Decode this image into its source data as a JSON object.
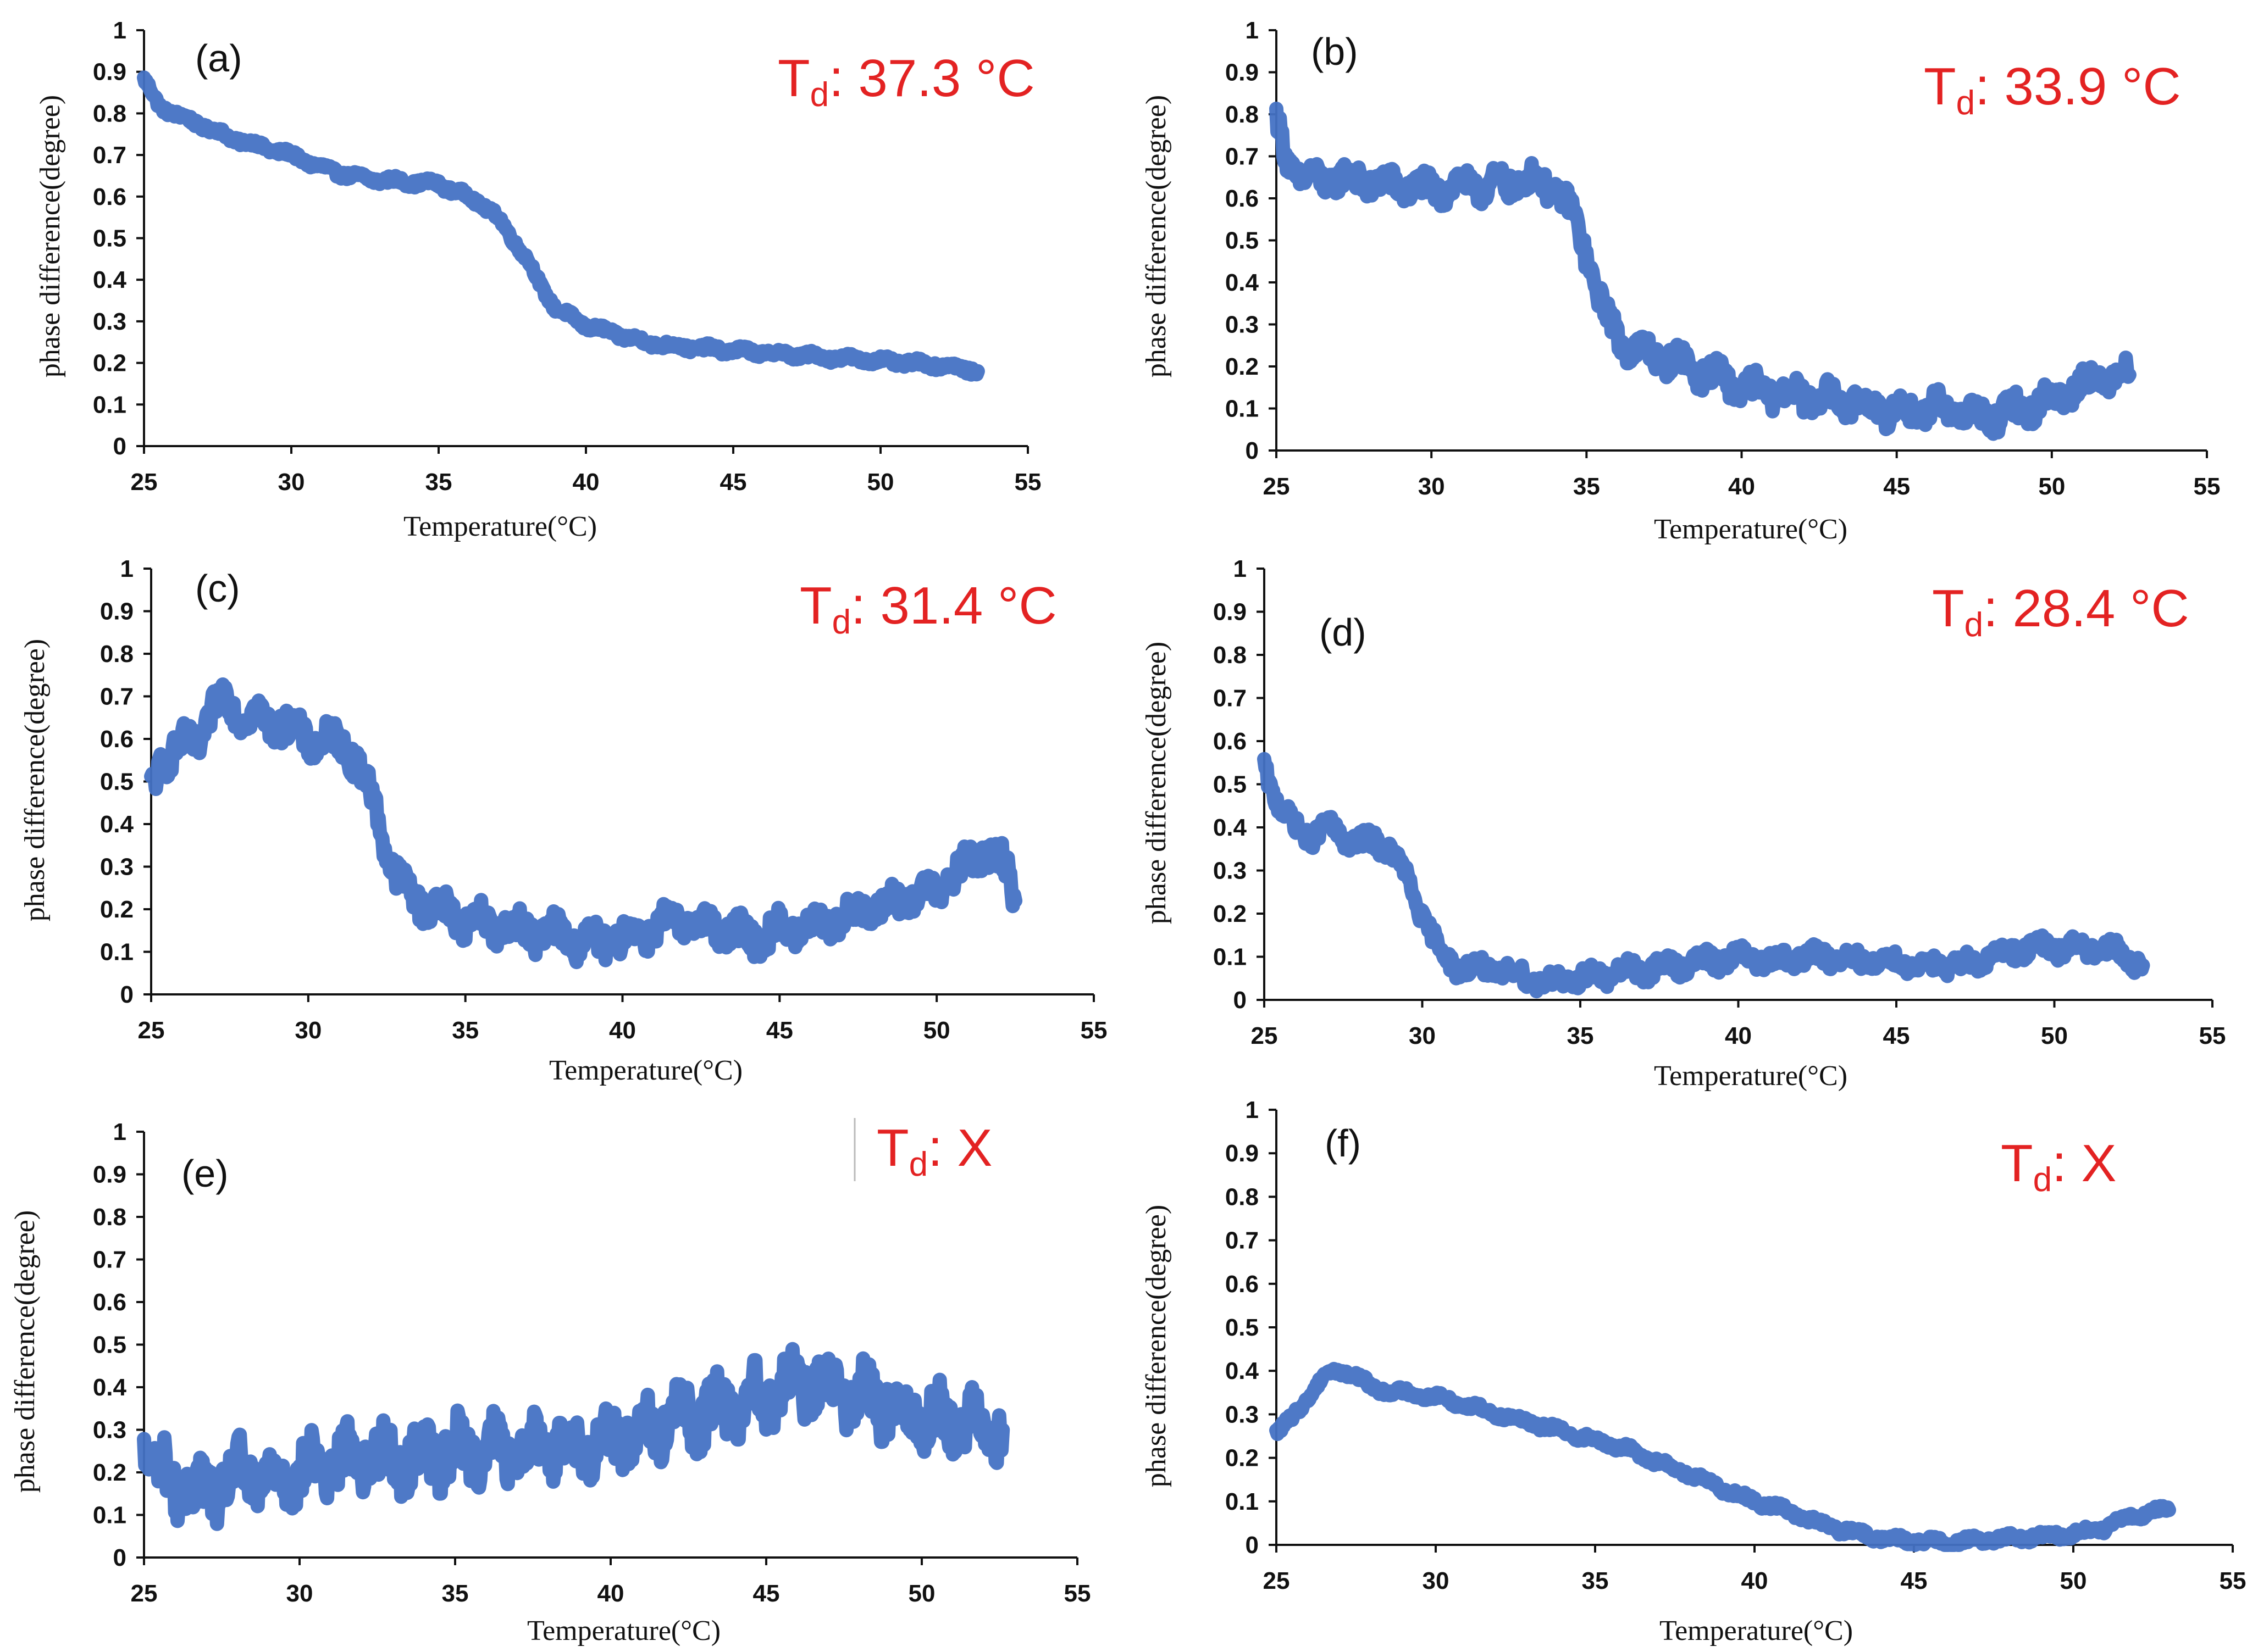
{
  "figure": {
    "series_color": "#4472c4",
    "annotation_color": "#e32222"
  },
  "chart_data": [
    {
      "type": "scatter",
      "panel_label": "(a)",
      "td_label": "T",
      "td_subscript": "d",
      "td_value": ": 37.3 °C",
      "xlabel": "Temperature(°C)",
      "ylabel": "phase difference(degree)",
      "xlim": [
        25,
        55
      ],
      "ylim": [
        0,
        1
      ],
      "xticks": [
        "25",
        "30",
        "35",
        "40",
        "45",
        "50",
        "55"
      ],
      "yticks": [
        "0",
        "0.1",
        "0.2",
        "0.3",
        "0.4",
        "0.5",
        "0.6",
        "0.7",
        "0.8",
        "0.9",
        "1"
      ],
      "noise": 0.008,
      "x": [
        25,
        25.5,
        26,
        27,
        28,
        29,
        30,
        31,
        32,
        33,
        34,
        35,
        36,
        36.5,
        37,
        37.5,
        38,
        38.5,
        39,
        39.5,
        40,
        41,
        42,
        43,
        44,
        45,
        46,
        47,
        48,
        49,
        50,
        51,
        52,
        53,
        53.3
      ],
      "y": [
        0.88,
        0.82,
        0.8,
        0.77,
        0.74,
        0.72,
        0.7,
        0.67,
        0.65,
        0.64,
        0.635,
        0.63,
        0.6,
        0.58,
        0.55,
        0.5,
        0.45,
        0.38,
        0.33,
        0.31,
        0.29,
        0.27,
        0.25,
        0.24,
        0.235,
        0.23,
        0.225,
        0.22,
        0.215,
        0.21,
        0.205,
        0.2,
        0.195,
        0.185,
        0.18
      ]
    },
    {
      "type": "scatter",
      "panel_label": "(b)",
      "td_label": "T",
      "td_subscript": "d",
      "td_value": ": 33.9 °C",
      "xlabel": "Temperature(°C)",
      "ylabel": "phase difference(degree)",
      "xlim": [
        25,
        55
      ],
      "ylim": [
        0,
        1
      ],
      "xticks": [
        "25",
        "30",
        "35",
        "40",
        "45",
        "50",
        "55"
      ],
      "yticks": [
        "0",
        "0.1",
        "0.2",
        "0.3",
        "0.4",
        "0.5",
        "0.6",
        "0.7",
        "0.8",
        "0.9",
        "1"
      ],
      "noise": 0.03,
      "x": [
        25,
        25.3,
        25.8,
        26.5,
        27,
        28,
        29,
        30,
        31,
        32,
        33,
        33.5,
        34,
        34.5,
        35,
        35.5,
        36,
        36.5,
        37,
        38,
        39,
        40,
        41,
        42,
        43,
        44,
        45,
        46,
        47,
        47.5,
        48,
        49,
        50,
        51,
        52,
        52.5
      ],
      "y": [
        0.78,
        0.7,
        0.65,
        0.64,
        0.65,
        0.64,
        0.63,
        0.62,
        0.63,
        0.63,
        0.64,
        0.64,
        0.62,
        0.57,
        0.47,
        0.34,
        0.27,
        0.24,
        0.23,
        0.21,
        0.18,
        0.15,
        0.14,
        0.13,
        0.12,
        0.11,
        0.09,
        0.1,
        0.1,
        0.08,
        0.08,
        0.1,
        0.12,
        0.16,
        0.18,
        0.18
      ]
    },
    {
      "type": "scatter",
      "panel_label": "(c)",
      "td_label": "T",
      "td_subscript": "d",
      "td_value": ": 31.4 °C",
      "xlabel": "Temperature(°C)",
      "ylabel": "phase difference(degree)",
      "xlim": [
        25,
        55
      ],
      "ylim": [
        0,
        1
      ],
      "xticks": [
        "25",
        "30",
        "35",
        "40",
        "45",
        "50",
        "55"
      ],
      "yticks": [
        "0",
        "0.1",
        "0.2",
        "0.3",
        "0.4",
        "0.5",
        "0.6",
        "0.7",
        "0.8",
        "0.9",
        "1"
      ],
      "noise": 0.035,
      "x": [
        25,
        25.3,
        26,
        26.5,
        27,
        27.4,
        28,
        29,
        30,
        31,
        31.4,
        31.8,
        32.2,
        32.6,
        33,
        33.5,
        34,
        35,
        36,
        37,
        38,
        39,
        40,
        41,
        42,
        43,
        44,
        45,
        46,
        47,
        48,
        49,
        50,
        51,
        51.5,
        52,
        52.3,
        52.5
      ],
      "y": [
        0.48,
        0.55,
        0.58,
        0.6,
        0.67,
        0.7,
        0.65,
        0.64,
        0.6,
        0.59,
        0.57,
        0.5,
        0.42,
        0.32,
        0.25,
        0.22,
        0.2,
        0.18,
        0.16,
        0.15,
        0.14,
        0.12,
        0.13,
        0.16,
        0.17,
        0.16,
        0.13,
        0.15,
        0.16,
        0.18,
        0.2,
        0.22,
        0.25,
        0.3,
        0.34,
        0.31,
        0.28,
        0.22
      ]
    },
    {
      "type": "scatter",
      "panel_label": "(d)",
      "td_label": "T",
      "td_subscript": "d",
      "td_value": ": 28.4 °C",
      "xlabel": "Temperature(°C)",
      "ylabel": "phase difference(degree)",
      "xlim": [
        25,
        55
      ],
      "ylim": [
        0,
        1
      ],
      "xticks": [
        "25",
        "30",
        "35",
        "40",
        "45",
        "50",
        "55"
      ],
      "yticks": [
        "0",
        "0.1",
        "0.2",
        "0.3",
        "0.4",
        "0.5",
        "0.6",
        "0.7",
        "0.8",
        "0.9",
        "1"
      ],
      "noise": 0.02,
      "x": [
        25,
        25.2,
        25.6,
        26,
        26.5,
        27,
        27.5,
        28,
        28.5,
        29,
        29.5,
        30,
        30.5,
        31,
        32,
        33,
        34,
        35,
        36,
        37,
        38,
        39,
        40,
        41,
        42,
        43,
        44,
        45,
        46,
        47,
        48,
        49,
        50,
        51,
        52,
        52.8
      ],
      "y": [
        0.55,
        0.5,
        0.43,
        0.4,
        0.38,
        0.4,
        0.38,
        0.36,
        0.37,
        0.35,
        0.28,
        0.2,
        0.12,
        0.08,
        0.07,
        0.06,
        0.04,
        0.05,
        0.06,
        0.07,
        0.08,
        0.09,
        0.1,
        0.09,
        0.1,
        0.1,
        0.09,
        0.09,
        0.08,
        0.08,
        0.1,
        0.12,
        0.12,
        0.12,
        0.11,
        0.08
      ]
    },
    {
      "type": "scatter",
      "panel_label": "(e)",
      "td_label": "T",
      "td_subscript": "d",
      "td_value": ":   X",
      "xlabel": "Temperature(°C)",
      "ylabel": "phase difference(degree)",
      "xlim": [
        25,
        55
      ],
      "ylim": [
        0,
        1
      ],
      "xticks": [
        "25",
        "30",
        "35",
        "40",
        "45",
        "50",
        "55"
      ],
      "yticks": [
        "0",
        "0.1",
        "0.2",
        "0.3",
        "0.4",
        "0.5",
        "0.6",
        "0.7",
        "0.8",
        "0.9",
        "1"
      ],
      "noise": 0.06,
      "x": [
        25,
        25.5,
        26,
        27,
        28,
        29,
        30,
        31,
        32,
        33,
        34,
        35,
        36,
        37,
        38,
        39,
        40,
        41,
        42,
        43,
        44,
        45,
        46,
        47,
        48,
        49,
        50,
        51,
        52,
        52.6
      ],
      "y": [
        0.27,
        0.2,
        0.17,
        0.15,
        0.2,
        0.18,
        0.2,
        0.22,
        0.24,
        0.23,
        0.24,
        0.25,
        0.26,
        0.24,
        0.27,
        0.26,
        0.28,
        0.3,
        0.32,
        0.34,
        0.36,
        0.38,
        0.41,
        0.4,
        0.38,
        0.36,
        0.33,
        0.32,
        0.32,
        0.3
      ]
    },
    {
      "type": "scatter",
      "panel_label": "(f)",
      "td_label": "T",
      "td_subscript": "d",
      "td_value": ":   X",
      "xlabel": "Temperature(°C)",
      "ylabel": "phase difference(degree)",
      "xlim": [
        25,
        55
      ],
      "ylim": [
        0,
        1
      ],
      "xticks": [
        "25",
        "30",
        "35",
        "40",
        "45",
        "50",
        "55"
      ],
      "yticks": [
        "0",
        "0.1",
        "0.2",
        "0.3",
        "0.4",
        "0.5",
        "0.6",
        "0.7",
        "0.8",
        "0.9",
        "1"
      ],
      "noise": 0.008,
      "x": [
        25,
        25.5,
        26,
        26.5,
        27,
        27.5,
        28,
        29,
        30,
        31,
        32,
        33,
        34,
        35,
        36,
        37,
        38,
        39,
        40,
        41,
        42,
        43,
        44,
        45,
        46,
        47,
        48,
        49,
        50,
        51,
        52,
        53
      ],
      "y": [
        0.26,
        0.29,
        0.34,
        0.39,
        0.4,
        0.39,
        0.36,
        0.35,
        0.34,
        0.32,
        0.3,
        0.28,
        0.26,
        0.24,
        0.22,
        0.19,
        0.16,
        0.13,
        0.1,
        0.08,
        0.05,
        0.03,
        0.015,
        0.01,
        0.005,
        0.01,
        0.015,
        0.02,
        0.025,
        0.04,
        0.07,
        0.08
      ]
    }
  ]
}
